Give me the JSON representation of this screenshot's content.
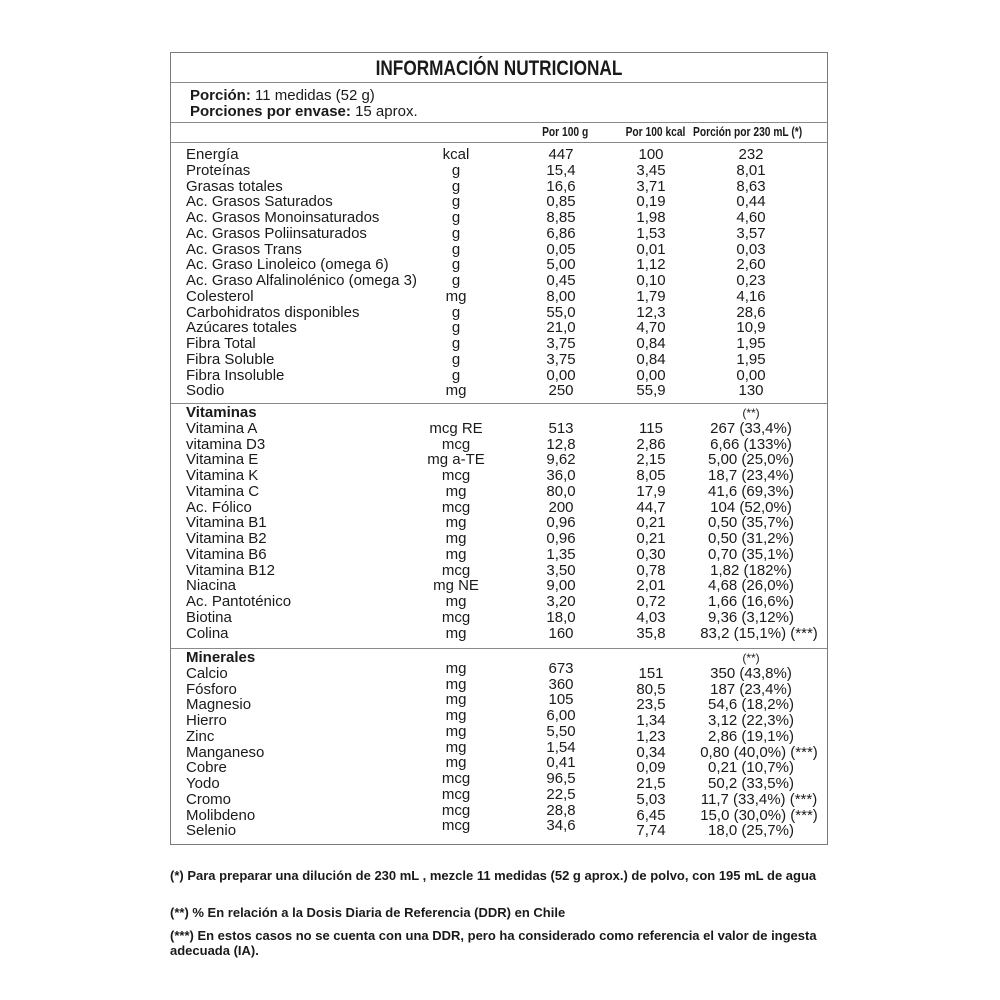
{
  "title": "INFORMACIÓN NUTRICIONAL",
  "portion": {
    "label": "Porción:",
    "value": "11 medidas (52 g)"
  },
  "servings": {
    "label": "Porciones por envase:",
    "value": "15 aprox."
  },
  "headers": [
    "Por 100 g",
    "Por 100 kcal",
    "Porción por 230 mL (*)"
  ],
  "macros": [
    [
      "Energía",
      "kcal",
      "447",
      "100",
      "232"
    ],
    [
      "Proteínas",
      "g",
      "15,4",
      "3,45",
      "8,01"
    ],
    [
      "Grasas totales",
      "g",
      "16,6",
      "3,71",
      "8,63"
    ],
    [
      "Ac. Grasos Saturados",
      "g",
      "0,85",
      "0,19",
      "0,44"
    ],
    [
      "Ac. Grasos Monoinsaturados",
      "g",
      "8,85",
      "1,98",
      "4,60"
    ],
    [
      "Ac. Grasos Poliinsaturados",
      "g",
      "6,86",
      "1,53",
      "3,57"
    ],
    [
      "Ac. Grasos  Trans",
      "g",
      "0,05",
      "0,01",
      "0,03"
    ],
    [
      "Ac. Graso Linoleico (omega 6)",
      "g",
      "5,00",
      "1,12",
      "2,60"
    ],
    [
      "Ac. Graso Alfalinolénico (omega 3)",
      "g",
      "0,45",
      "0,10",
      "0,23"
    ],
    [
      "Colesterol",
      "mg",
      "8,00",
      "1,79",
      "4,16"
    ],
    [
      "Carbohidratos disponibles",
      "g",
      "55,0",
      "12,3",
      "28,6"
    ],
    [
      "Azúcares totales",
      "g",
      "21,0",
      "4,70",
      "10,9"
    ],
    [
      "Fibra Total",
      "g",
      "3,75",
      "0,84",
      "1,95"
    ],
    [
      "Fibra Soluble",
      "g",
      "3,75",
      "0,84",
      "1,95"
    ],
    [
      "Fibra Insoluble",
      "g",
      "0,00",
      "0,00",
      "0,00"
    ],
    [
      "Sodio",
      "mg",
      "250",
      "55,9",
      "130"
    ]
  ],
  "vitamins": {
    "title": "Vitaminas",
    "note": "(**)",
    "rows": [
      [
        "Vitamina A",
        "mcg RE",
        "513",
        "115",
        "267 (33,4%)"
      ],
      [
        "vitamina D3",
        "mcg",
        "12,8",
        "2,86",
        "6,66 (133%)"
      ],
      [
        "Vitamina E",
        "mg a-TE",
        "9,62",
        "2,15",
        "5,00 (25,0%)"
      ],
      [
        "Vitamina K",
        "mcg",
        "36,0",
        "8,05",
        "18,7 (23,4%)"
      ],
      [
        "Vitamina C",
        "mg",
        "80,0",
        "17,9",
        "41,6 (69,3%)"
      ],
      [
        "Ac. Fólico",
        "mcg",
        "200",
        "44,7",
        "104 (52,0%)"
      ],
      [
        "Vitamina B1",
        "mg",
        "0,96",
        "0,21",
        "0,50 (35,7%)"
      ],
      [
        "Vitamina B2",
        "mg",
        "0,96",
        "0,21",
        "0,50 (31,2%)"
      ],
      [
        "Vitamina B6",
        "mg",
        "1,35",
        "0,30",
        "0,70 (35,1%)"
      ],
      [
        "Vitamina B12",
        "mcg",
        "3,50",
        "0,78",
        "1,82 (182%)"
      ],
      [
        "Niacina",
        "mg NE",
        "9,00",
        "2,01",
        "4,68 (26,0%)"
      ],
      [
        "Ac. Pantoténico",
        "mg",
        "3,20",
        "0,72",
        "1,66 (16,6%)"
      ],
      [
        "Biotina",
        "mcg",
        "18,0",
        "4,03",
        "9,36 (3,12%)"
      ],
      [
        "Colina",
        "mg",
        "160",
        "35,8",
        "83,2 (15,1%) (***)"
      ]
    ]
  },
  "minerals": {
    "title": "Minerales",
    "note": "(**)",
    "rows": [
      [
        "Calcio",
        "mg",
        "673",
        "151",
        "350 (43,8%)"
      ],
      [
        "Fósforo",
        "mg",
        "360",
        "80,5",
        "187 (23,4%)"
      ],
      [
        "Magnesio",
        "mg",
        "105",
        "23,5",
        "54,6 (18,2%)"
      ],
      [
        "Hierro",
        "mg",
        "6,00",
        "1,34",
        "3,12 (22,3%)"
      ],
      [
        "Zinc",
        "mg",
        "5,50",
        "1,23",
        "2,86 (19,1%)"
      ],
      [
        "Manganeso",
        "mg",
        "1,54",
        "0,34",
        "0,80 (40,0%) (***)"
      ],
      [
        "Cobre",
        "mg",
        "0,41",
        "0,09",
        "0,21 (10,7%)"
      ],
      [
        "Yodo",
        "mcg",
        "96,5",
        "21,5",
        "50,2 (33,5%)"
      ],
      [
        "Cromo",
        "mcg",
        "22,5",
        "5,03",
        "11,7 (33,4%) (***)"
      ],
      [
        "Molibdeno",
        "mcg",
        "28,8",
        "6,45",
        "15,0 (30,0%) (***)"
      ],
      [
        "Selenio",
        "mcg",
        "34,6",
        "7,74",
        "18,0 (25,7%)"
      ]
    ]
  },
  "footnotes": [
    "(*)    Para preparar una dilución de 230 mL , mezcle 11 medidas (52 g aprox.) de polvo, con 195 mL de agua",
    "(**) % En relación a la Dosis Diaria de Referencia (DDR) en Chile",
    "(***) En estos casos no se cuenta con una DDR, pero ha considerado como referencia el valor de ingesta adecuada (IA)."
  ]
}
